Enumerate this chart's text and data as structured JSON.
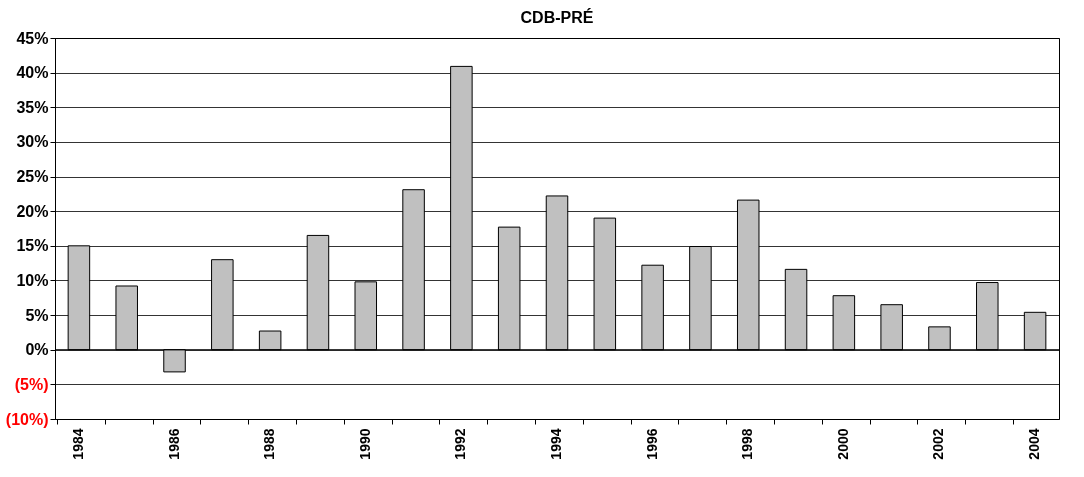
{
  "chart_data": {
    "type": "bar",
    "title": "CDB-PRÉ",
    "categories": [
      "1984",
      null,
      "1986",
      null,
      "1988",
      null,
      "1990",
      null,
      "1992",
      null,
      "1994",
      null,
      "1996",
      null,
      "1998",
      null,
      "2000",
      null,
      "2002",
      null,
      "2004"
    ],
    "series": [
      {
        "color": "#c0c0c0",
        "values": [
          15,
          9.2,
          -3.2,
          13,
          2.7,
          16.5,
          9.8,
          23.1,
          40.9,
          17.7,
          22.2,
          19,
          12.2,
          14.9,
          21.6,
          11.6,
          7.8,
          6.5,
          3.3,
          9.7,
          5.4
        ]
      }
    ],
    "ylim": [
      -10,
      45
    ],
    "yticks": [
      {
        "value": -10,
        "label": "(10%)"
      },
      {
        "value": -5,
        "label": "(5%)"
      },
      {
        "value": 0,
        "label": "0%"
      },
      {
        "value": 5,
        "label": "5%"
      },
      {
        "value": 10,
        "label": "10%"
      },
      {
        "value": 15,
        "label": "15%"
      },
      {
        "value": 20,
        "label": "20%"
      },
      {
        "value": 25,
        "label": "25%"
      },
      {
        "value": 30,
        "label": "30%"
      },
      {
        "value": 35,
        "label": "35%"
      },
      {
        "value": 40,
        "label": "40%"
      },
      {
        "value": 45,
        "label": "45%"
      }
    ],
    "grid": "y",
    "legend": false
  }
}
